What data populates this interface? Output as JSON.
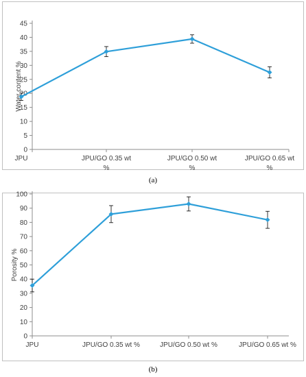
{
  "chart_data": [
    {
      "type": "line",
      "panel_label": "(a)",
      "categories": [
        [
          "JPU"
        ],
        [
          "JPU/GO 0.35 wt",
          "%"
        ],
        [
          "JPU/GO 0.50 wt",
          "%"
        ],
        [
          "JPU/GO 0.65 wt",
          "%"
        ]
      ],
      "values": [
        18.8,
        34.9,
        39.4,
        27.5
      ],
      "errors": [
        1.3,
        1.8,
        1.5,
        2.0
      ],
      "ylabel": "Water content %",
      "ylim": [
        0,
        45
      ],
      "yticks": [
        0,
        5,
        10,
        15,
        20,
        25,
        30,
        35,
        40,
        45
      ],
      "grid": false,
      "color": "#2e9fd9"
    },
    {
      "type": "line",
      "panel_label": "(b)",
      "categories": [
        [
          "JPU"
        ],
        [
          "JPU/GO 0.35 wt %"
        ],
        [
          "JPU/GO 0.50 wt %"
        ],
        [
          "JPU/GO 0.65 wt %"
        ]
      ],
      "values": [
        35.5,
        85.8,
        93.0,
        81.8
      ],
      "errors": [
        4.5,
        6.0,
        5.0,
        6.0
      ],
      "ylabel": "Porosity %",
      "ylim": [
        0,
        100
      ],
      "yticks": [
        0,
        10,
        20,
        30,
        40,
        50,
        60,
        70,
        80,
        90,
        100
      ],
      "grid": false,
      "color": "#2e9fd9"
    }
  ]
}
